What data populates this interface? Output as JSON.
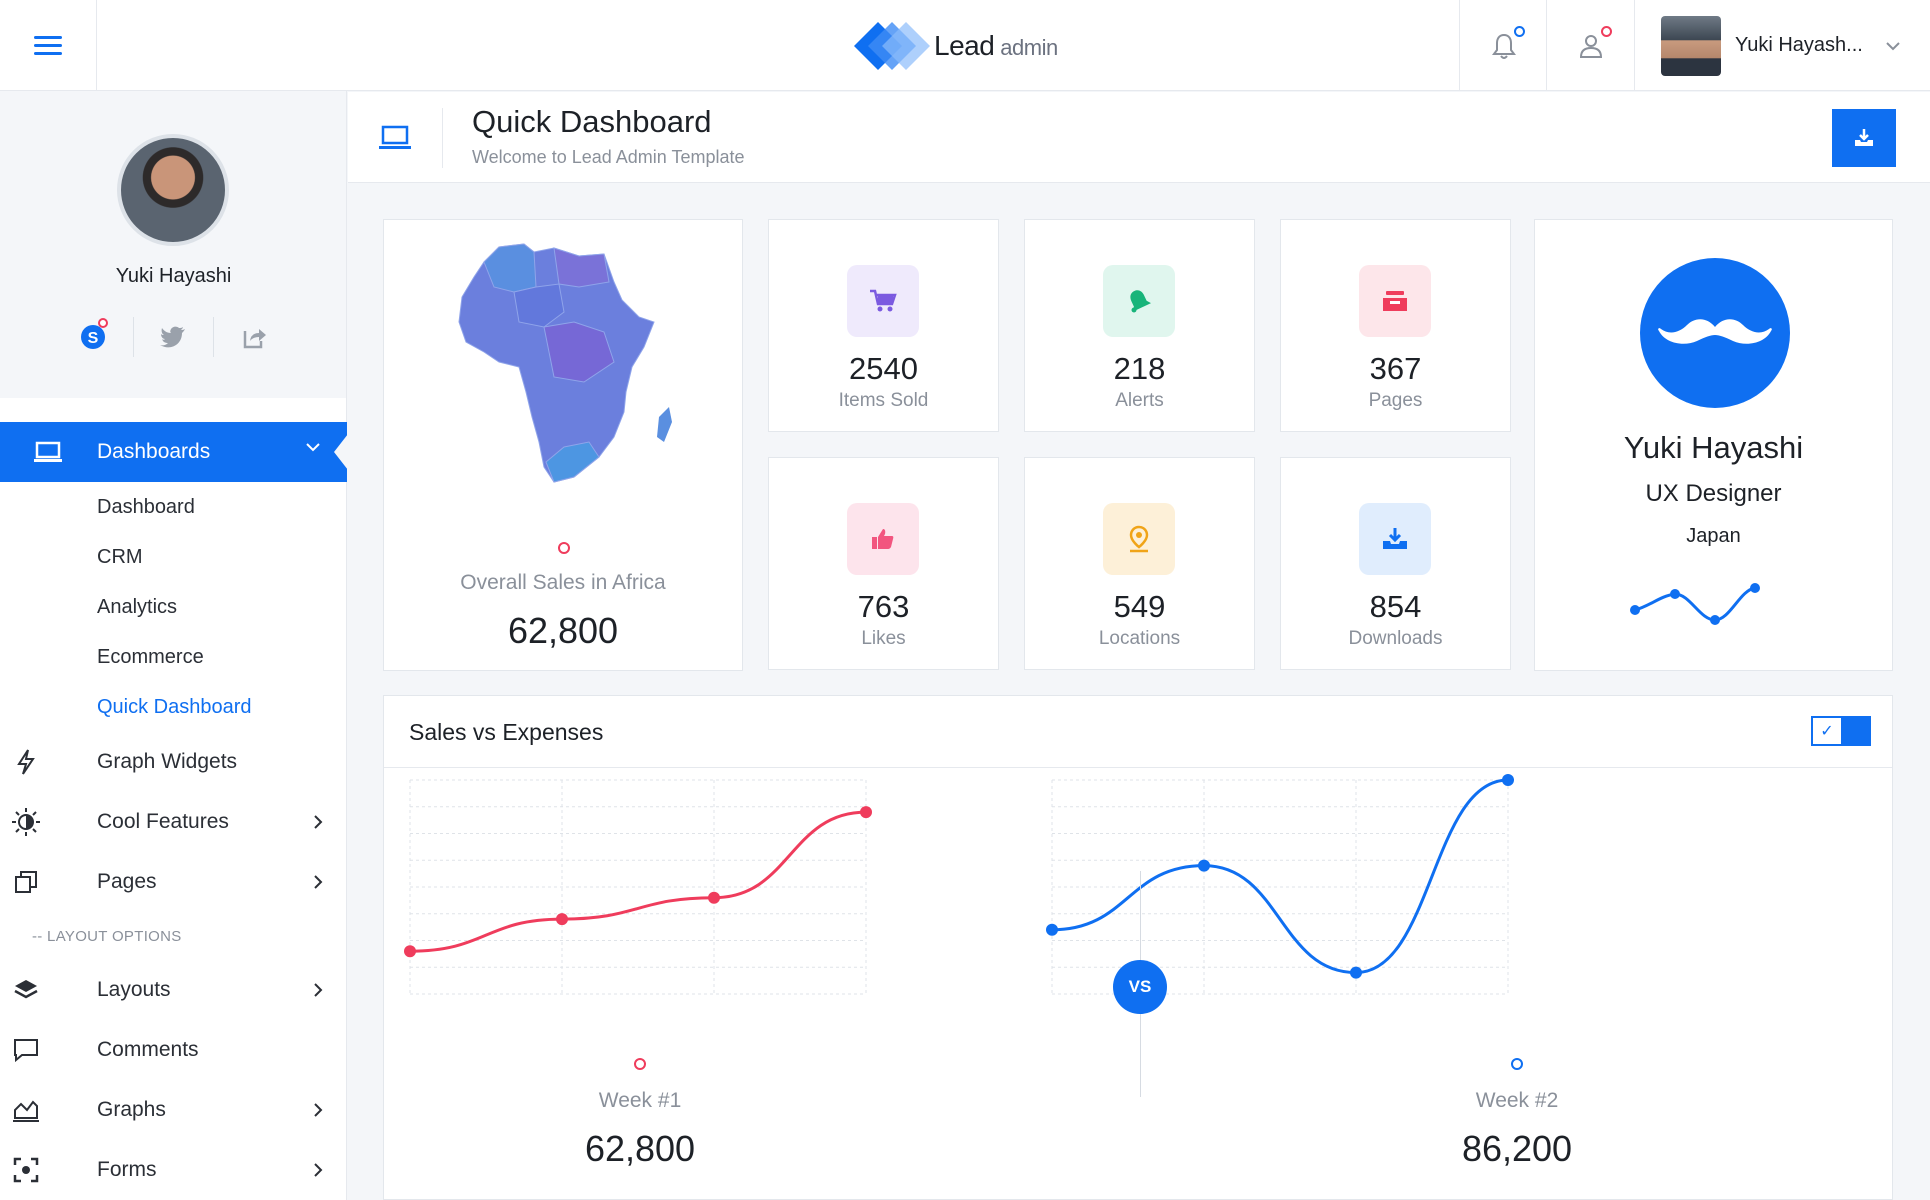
{
  "header": {
    "brand_main": "Lead",
    "brand_sub": "admin",
    "user_name": "Yuki Hayash..."
  },
  "sidebar": {
    "profile_name": "Yuki Hayashi",
    "nav_active": "Dashboards",
    "sub_items": [
      "Dashboard",
      "CRM",
      "Analytics",
      "Ecommerce",
      "Quick Dashboard"
    ],
    "items": [
      {
        "label": "Graph Widgets",
        "icon": "bolt-icon"
      },
      {
        "label": "Cool Features",
        "icon": "sun-icon"
      },
      {
        "label": "Pages",
        "icon": "copy-icon"
      },
      {
        "label": "Layouts",
        "icon": "layers-icon"
      },
      {
        "label": "Comments",
        "icon": "comment-icon"
      },
      {
        "label": "Graphs",
        "icon": "area-chart-icon"
      },
      {
        "label": "Forms",
        "icon": "focus-icon"
      }
    ],
    "section_label": "-- LAYOUT OPTIONS"
  },
  "page": {
    "title": "Quick Dashboard",
    "subtitle": "Welcome to Lead Admin Template"
  },
  "map_card": {
    "caption": "Overall Sales in Africa",
    "value": "62,800"
  },
  "stats": [
    {
      "value": "2540",
      "label": "Items Sold",
      "icon": "cart-icon",
      "color": "#7b5ae0",
      "bg": "#efeafc"
    },
    {
      "value": "218",
      "label": "Alerts",
      "icon": "bell-icon",
      "color": "#18b47a",
      "bg": "#e0f6ee"
    },
    {
      "value": "367",
      "label": "Pages",
      "icon": "inbox-icon",
      "color": "#ef3c5c",
      "bg": "#fde6ea"
    },
    {
      "value": "763",
      "label": "Likes",
      "icon": "thumbs-up-icon",
      "color": "#f2557f",
      "bg": "#fde4ec"
    },
    {
      "value": "549",
      "label": "Locations",
      "icon": "map-pin-icon",
      "color": "#f0a418",
      "bg": "#fdf0d8"
    },
    {
      "value": "854",
      "label": "Downloads",
      "icon": "download-icon",
      "color": "#0f6ff1",
      "bg": "#e0edfd"
    }
  ],
  "profile_card": {
    "name": "Yuki Hayashi",
    "role": "UX Designer",
    "country": "Japan"
  },
  "sales": {
    "title": "Sales vs Expenses",
    "vs_label": "VS",
    "week1": {
      "label": "Week #1",
      "value": "62,800",
      "color": "#ef3c5c"
    },
    "week2": {
      "label": "Week #2",
      "value": "86,200",
      "color": "#0f6ff1"
    }
  },
  "chart_data": [
    {
      "type": "line",
      "name": "Week #1",
      "x": [
        0,
        1,
        2,
        3
      ],
      "values": [
        2,
        3.5,
        4.5,
        8.5
      ],
      "ylim": [
        0,
        10
      ]
    },
    {
      "type": "line",
      "name": "Week #2",
      "x": [
        0,
        1,
        2,
        3
      ],
      "values": [
        3,
        6,
        1,
        10
      ],
      "ylim": [
        0,
        10
      ]
    }
  ],
  "colors": {
    "accent": "#0f6ff1",
    "danger": "#ef3c5c"
  }
}
